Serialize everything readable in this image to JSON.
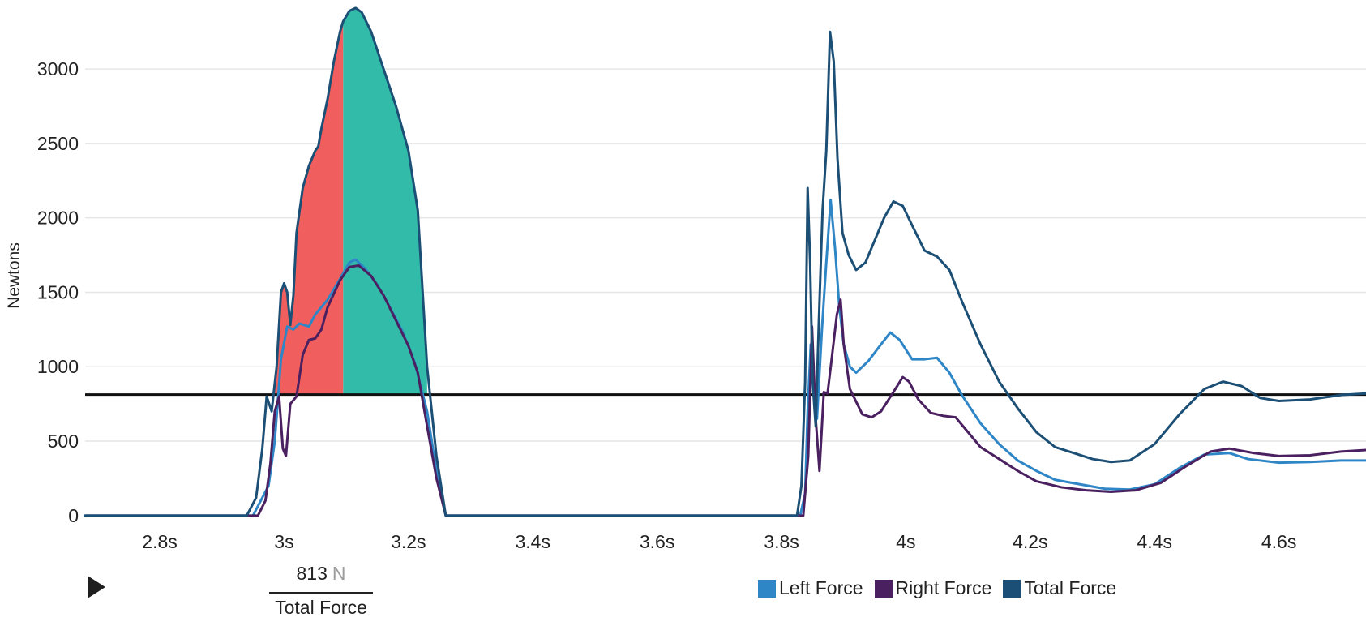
{
  "chart_data": {
    "type": "line",
    "ylabel": "Newtons",
    "xlabel": "",
    "x_tick_labels": [
      "2.8s",
      "3s",
      "3.2s",
      "3.4s",
      "3.6s",
      "3.8s",
      "4s",
      "4.2s",
      "4.4s",
      "4.6s"
    ],
    "x_ticks": [
      2.8,
      3.0,
      3.2,
      3.4,
      3.6,
      3.8,
      4.0,
      4.2,
      4.4,
      4.6
    ],
    "y_ticks": [
      0,
      500,
      1000,
      1500,
      2000,
      2500,
      3000
    ],
    "y_tick_labels": [
      "0",
      "500",
      "1000",
      "1500",
      "2000",
      "2500",
      "3000"
    ],
    "xlim": [
      2.68,
      4.74
    ],
    "ylim": [
      -50,
      3420
    ],
    "grid": "horizontal",
    "legend_position": "bottom",
    "threshold": 813,
    "shaded_regions": [
      {
        "x_start": 2.985,
        "x_end": 3.095,
        "color": "#f05f5e"
      },
      {
        "x_start": 3.095,
        "x_end": 3.23,
        "color": "#33bba9"
      }
    ],
    "series": [
      {
        "name": "Left Force",
        "color": "#2e86c6",
        "points": [
          [
            2.68,
            0
          ],
          [
            2.95,
            0
          ],
          [
            2.975,
            200
          ],
          [
            2.985,
            500
          ],
          [
            2.995,
            1050
          ],
          [
            3.005,
            1270
          ],
          [
            3.015,
            1250
          ],
          [
            3.025,
            1290
          ],
          [
            3.04,
            1270
          ],
          [
            3.05,
            1350
          ],
          [
            3.07,
            1450
          ],
          [
            3.09,
            1590
          ],
          [
            3.105,
            1700
          ],
          [
            3.115,
            1720
          ],
          [
            3.13,
            1660
          ],
          [
            3.15,
            1550
          ],
          [
            3.17,
            1400
          ],
          [
            3.19,
            1240
          ],
          [
            3.21,
            1030
          ],
          [
            3.23,
            700
          ],
          [
            3.245,
            300
          ],
          [
            3.26,
            0
          ],
          [
            3.83,
            0
          ],
          [
            3.838,
            150
          ],
          [
            3.842,
            700
          ],
          [
            3.847,
            1150
          ],
          [
            3.852,
            900
          ],
          [
            3.857,
            650
          ],
          [
            3.865,
            1250
          ],
          [
            3.872,
            1700
          ],
          [
            3.879,
            2120
          ],
          [
            3.886,
            1800
          ],
          [
            3.893,
            1400
          ],
          [
            3.9,
            1150
          ],
          [
            3.91,
            1000
          ],
          [
            3.92,
            960
          ],
          [
            3.94,
            1040
          ],
          [
            3.96,
            1150
          ],
          [
            3.975,
            1230
          ],
          [
            3.99,
            1180
          ],
          [
            4.01,
            1050
          ],
          [
            4.03,
            1050
          ],
          [
            4.05,
            1060
          ],
          [
            4.07,
            960
          ],
          [
            4.09,
            810
          ],
          [
            4.12,
            620
          ],
          [
            4.15,
            480
          ],
          [
            4.18,
            370
          ],
          [
            4.21,
            300
          ],
          [
            4.24,
            240
          ],
          [
            4.28,
            210
          ],
          [
            4.32,
            180
          ],
          [
            4.36,
            175
          ],
          [
            4.4,
            210
          ],
          [
            4.44,
            320
          ],
          [
            4.48,
            410
          ],
          [
            4.52,
            420
          ],
          [
            4.55,
            380
          ],
          [
            4.6,
            355
          ],
          [
            4.65,
            360
          ],
          [
            4.7,
            370
          ],
          [
            4.74,
            370
          ]
        ]
      },
      {
        "name": "Right Force",
        "color": "#4a2060",
        "points": [
          [
            2.68,
            0
          ],
          [
            2.958,
            0
          ],
          [
            2.97,
            100
          ],
          [
            2.978,
            350
          ],
          [
            2.985,
            700
          ],
          [
            2.992,
            800
          ],
          [
            2.998,
            450
          ],
          [
            3.003,
            400
          ],
          [
            3.01,
            750
          ],
          [
            3.02,
            800
          ],
          [
            3.03,
            1080
          ],
          [
            3.04,
            1180
          ],
          [
            3.05,
            1190
          ],
          [
            3.06,
            1250
          ],
          [
            3.07,
            1400
          ],
          [
            3.09,
            1580
          ],
          [
            3.105,
            1670
          ],
          [
            3.12,
            1680
          ],
          [
            3.14,
            1610
          ],
          [
            3.16,
            1480
          ],
          [
            3.18,
            1310
          ],
          [
            3.2,
            1140
          ],
          [
            3.215,
            960
          ],
          [
            3.23,
            600
          ],
          [
            3.245,
            250
          ],
          [
            3.26,
            0
          ],
          [
            3.835,
            0
          ],
          [
            3.843,
            400
          ],
          [
            3.849,
            1270
          ],
          [
            3.855,
            650
          ],
          [
            3.861,
            300
          ],
          [
            3.868,
            830
          ],
          [
            3.874,
            820
          ],
          [
            3.882,
            1100
          ],
          [
            3.889,
            1350
          ],
          [
            3.895,
            1450
          ],
          [
            3.9,
            1150
          ],
          [
            3.91,
            850
          ],
          [
            3.93,
            680
          ],
          [
            3.945,
            660
          ],
          [
            3.96,
            700
          ],
          [
            3.98,
            830
          ],
          [
            3.995,
            930
          ],
          [
            4.005,
            900
          ],
          [
            4.02,
            780
          ],
          [
            4.04,
            690
          ],
          [
            4.06,
            670
          ],
          [
            4.08,
            660
          ],
          [
            4.1,
            560
          ],
          [
            4.12,
            460
          ],
          [
            4.15,
            380
          ],
          [
            4.18,
            300
          ],
          [
            4.21,
            230
          ],
          [
            4.25,
            190
          ],
          [
            4.29,
            170
          ],
          [
            4.33,
            160
          ],
          [
            4.37,
            170
          ],
          [
            4.41,
            220
          ],
          [
            4.45,
            330
          ],
          [
            4.49,
            430
          ],
          [
            4.52,
            450
          ],
          [
            4.56,
            420
          ],
          [
            4.6,
            400
          ],
          [
            4.65,
            405
          ],
          [
            4.7,
            430
          ],
          [
            4.74,
            440
          ]
        ]
      },
      {
        "name": "Total Force",
        "color": "#1c4f75",
        "points": [
          [
            2.68,
            0
          ],
          [
            2.94,
            0
          ],
          [
            2.955,
            120
          ],
          [
            2.965,
            450
          ],
          [
            2.972,
            800
          ],
          [
            2.98,
            700
          ],
          [
            2.988,
            1000
          ],
          [
            2.995,
            1500
          ],
          [
            3.0,
            1560
          ],
          [
            3.005,
            1500
          ],
          [
            3.01,
            1280
          ],
          [
            3.015,
            1480
          ],
          [
            3.02,
            1900
          ],
          [
            3.03,
            2200
          ],
          [
            3.04,
            2350
          ],
          [
            3.05,
            2450
          ],
          [
            3.055,
            2480
          ],
          [
            3.06,
            2600
          ],
          [
            3.07,
            2800
          ],
          [
            3.08,
            3050
          ],
          [
            3.09,
            3250
          ],
          [
            3.095,
            3320
          ],
          [
            3.105,
            3390
          ],
          [
            3.115,
            3410
          ],
          [
            3.125,
            3380
          ],
          [
            3.14,
            3250
          ],
          [
            3.16,
            3000
          ],
          [
            3.18,
            2750
          ],
          [
            3.2,
            2450
          ],
          [
            3.215,
            2050
          ],
          [
            3.23,
            1000
          ],
          [
            3.245,
            400
          ],
          [
            3.26,
            0
          ],
          [
            3.275,
            0
          ],
          [
            3.825,
            0
          ],
          [
            3.832,
            200
          ],
          [
            3.838,
            900
          ],
          [
            3.842,
            2200
          ],
          [
            3.846,
            1700
          ],
          [
            3.85,
            900
          ],
          [
            3.855,
            600
          ],
          [
            3.86,
            1300
          ],
          [
            3.866,
            2050
          ],
          [
            3.872,
            2450
          ],
          [
            3.878,
            3250
          ],
          [
            3.884,
            3050
          ],
          [
            3.89,
            2400
          ],
          [
            3.898,
            1900
          ],
          [
            3.908,
            1750
          ],
          [
            3.92,
            1650
          ],
          [
            3.935,
            1700
          ],
          [
            3.95,
            1850
          ],
          [
            3.965,
            2000
          ],
          [
            3.98,
            2110
          ],
          [
            3.995,
            2080
          ],
          [
            4.01,
            1950
          ],
          [
            4.03,
            1780
          ],
          [
            4.05,
            1740
          ],
          [
            4.07,
            1650
          ],
          [
            4.09,
            1440
          ],
          [
            4.12,
            1150
          ],
          [
            4.15,
            900
          ],
          [
            4.18,
            720
          ],
          [
            4.21,
            560
          ],
          [
            4.24,
            460
          ],
          [
            4.27,
            420
          ],
          [
            4.3,
            380
          ],
          [
            4.33,
            360
          ],
          [
            4.36,
            370
          ],
          [
            4.4,
            480
          ],
          [
            4.44,
            680
          ],
          [
            4.48,
            850
          ],
          [
            4.51,
            900
          ],
          [
            4.54,
            870
          ],
          [
            4.57,
            790
          ],
          [
            4.6,
            770
          ],
          [
            4.65,
            780
          ],
          [
            4.7,
            810
          ],
          [
            4.74,
            820
          ]
        ]
      }
    ]
  },
  "controls": {
    "play_icon": "play-icon",
    "readout_value": "813",
    "readout_unit": "N",
    "readout_label": "Total Force"
  },
  "legend": {
    "items": [
      {
        "label": "Left Force",
        "color": "#2e86c6"
      },
      {
        "label": "Right Force",
        "color": "#4a2060"
      },
      {
        "label": "Total Force",
        "color": "#1c4f75"
      }
    ]
  }
}
